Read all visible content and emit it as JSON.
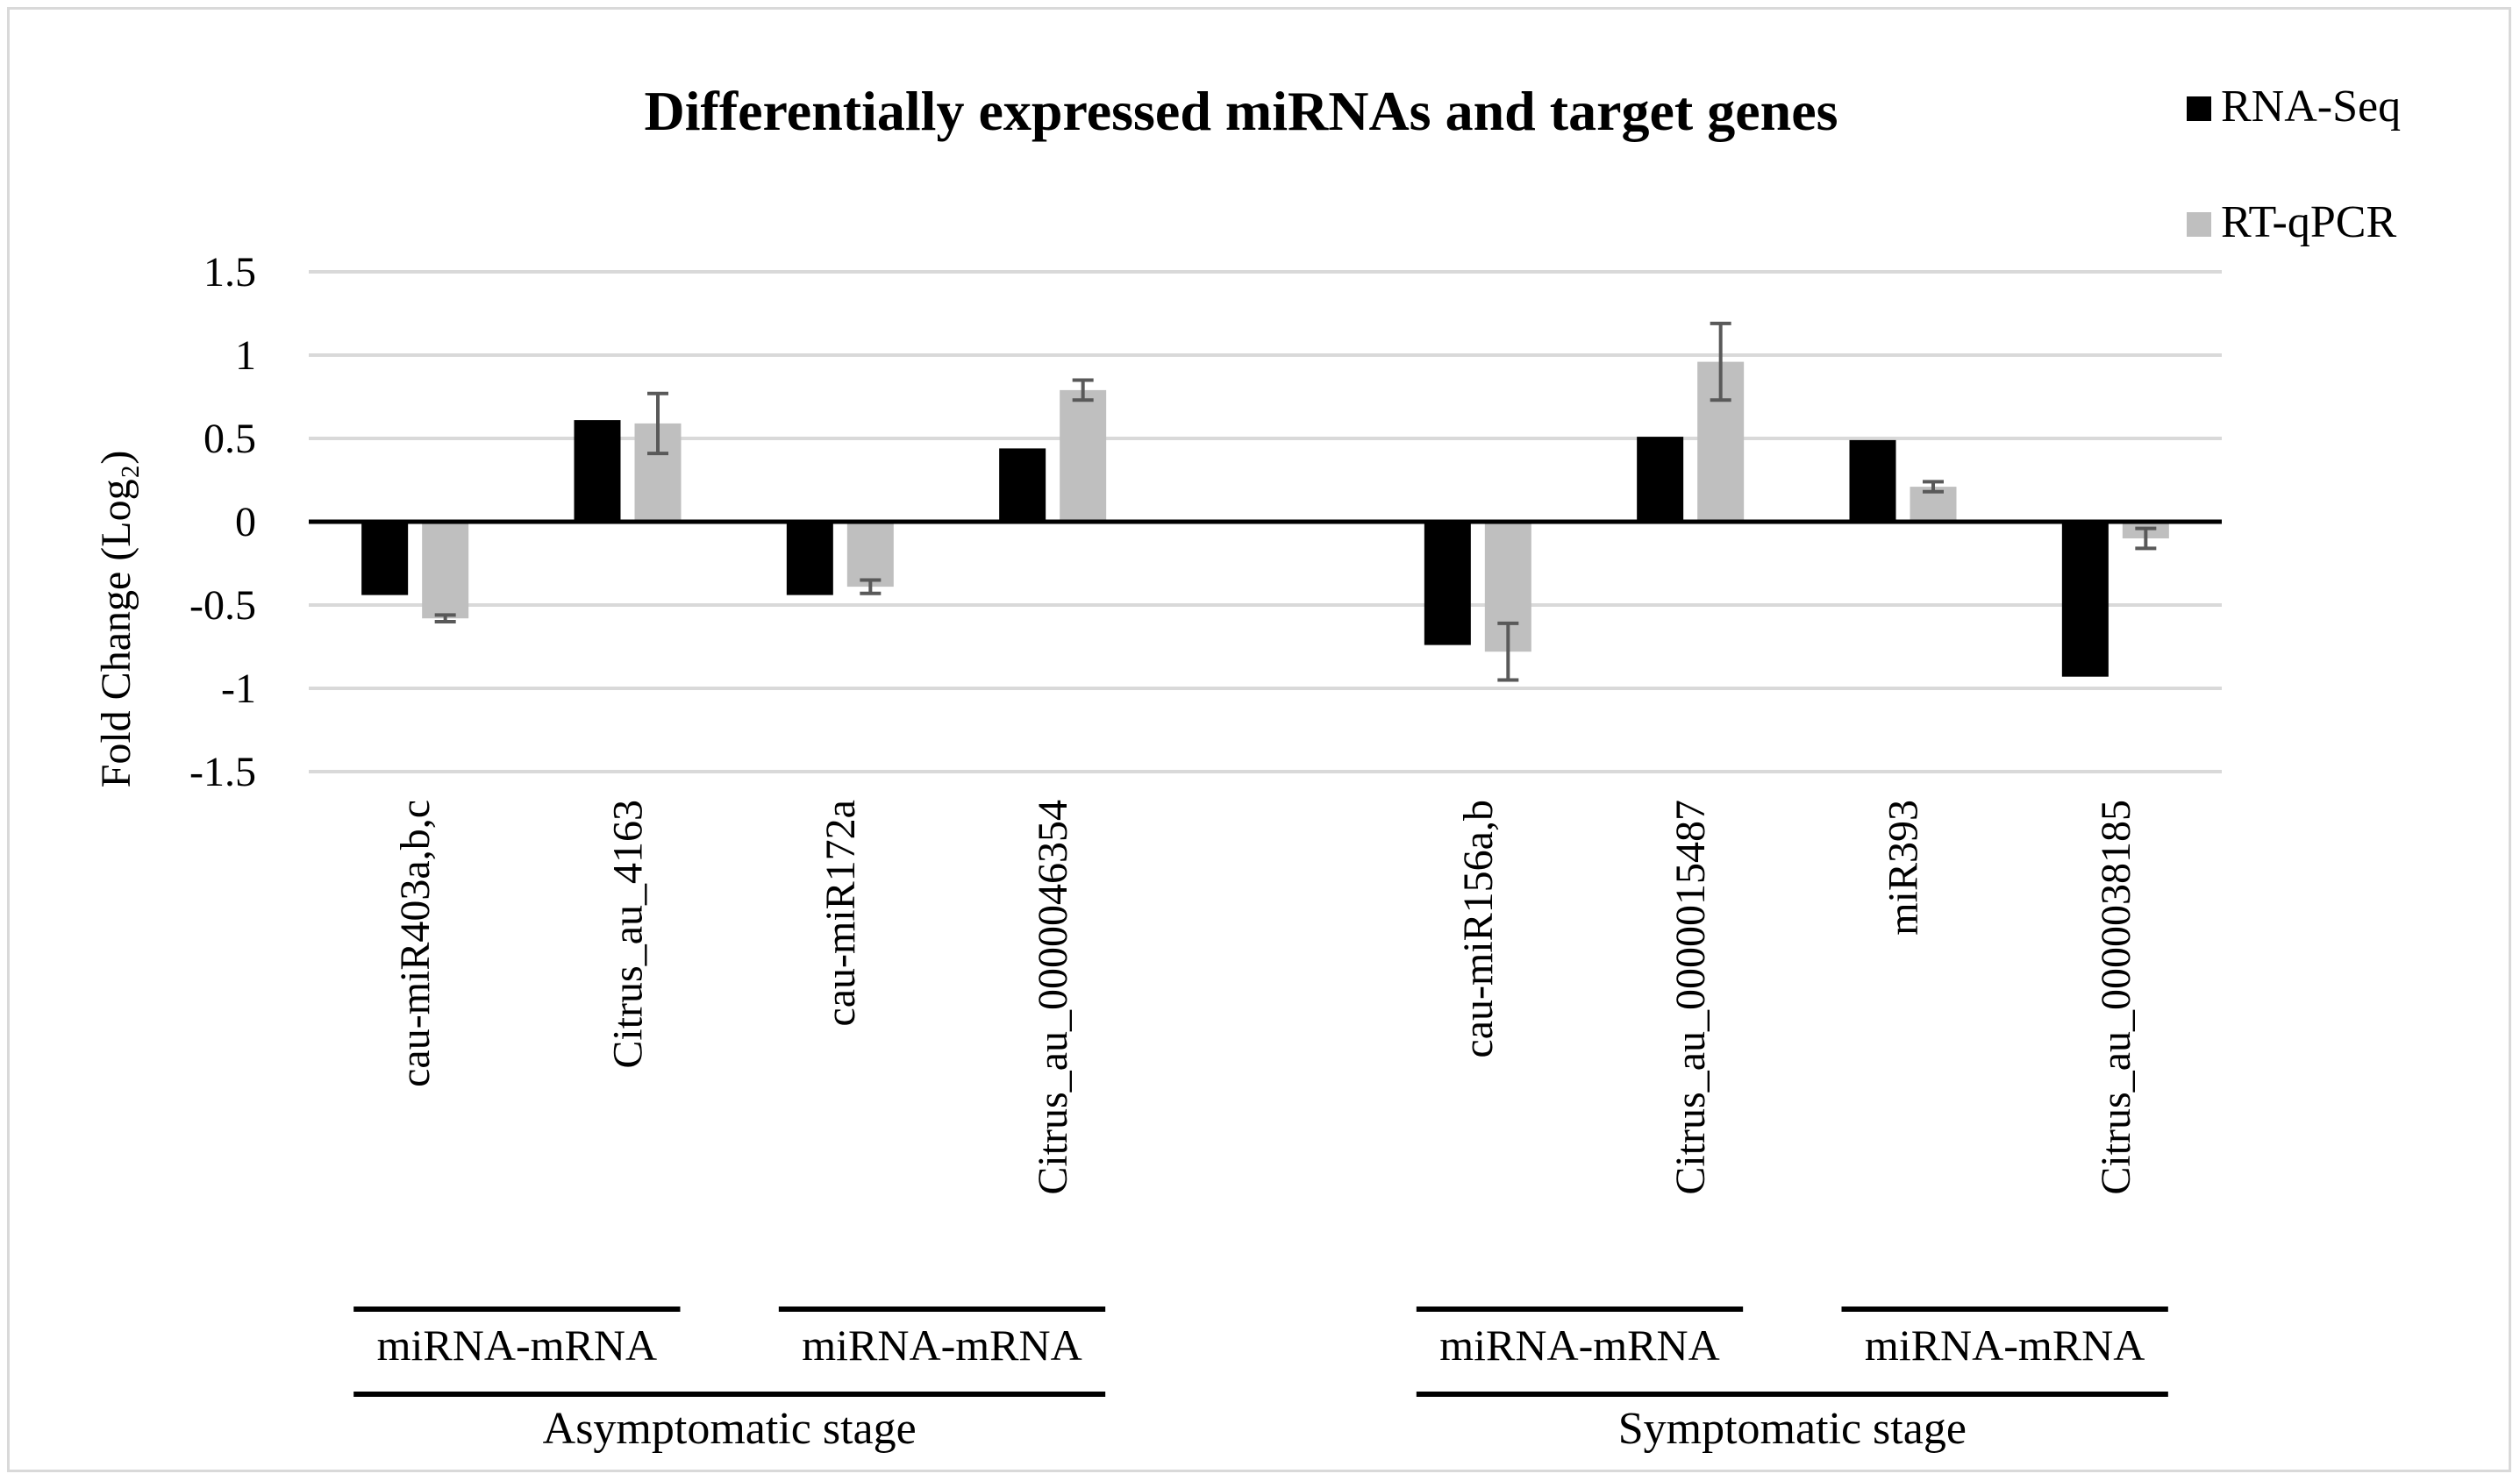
{
  "chart_data": {
    "type": "bar",
    "title": "Differentially expressed miRNAs and target genes",
    "ylabel": "Fold Change (Log₂)",
    "xlabel": "",
    "ylim": [
      -1.5,
      1.5
    ],
    "yticks": [
      -1.5,
      -1,
      -0.5,
      0,
      0.5,
      1,
      1.5
    ],
    "ytick_labels": [
      "-1.5",
      "-1",
      "-0.5",
      "0",
      "0.5",
      "1",
      "1.5"
    ],
    "grid": true,
    "legend_position": "top-right",
    "categories": [
      "cau-miR403a,b,c",
      "Citrus_au_4163",
      "cau-miR172a",
      "Citrus_au_0000046354",
      "",
      "cau-miR156a,b",
      "Citrus_au_0000015487",
      "miR393",
      "Citrus_au_0000038185"
    ],
    "series": [
      {
        "name": "RNA-Seq",
        "color": "#000000",
        "values": [
          -0.44,
          0.61,
          -0.44,
          0.44,
          null,
          -0.74,
          0.51,
          0.49,
          -0.93
        ]
      },
      {
        "name": "RT-qPCR",
        "color": "#bfbfbf",
        "values": [
          -0.58,
          0.59,
          -0.39,
          0.79,
          null,
          -0.78,
          0.96,
          0.21,
          -0.1
        ],
        "errors": [
          0.02,
          0.18,
          0.04,
          0.06,
          null,
          0.17,
          0.23,
          0.03,
          0.06
        ]
      }
    ],
    "pairs": [
      {
        "label": "miRNA-mRNA",
        "from": 0,
        "to": 1
      },
      {
        "label": "miRNA-mRNA",
        "from": 2,
        "to": 3
      },
      {
        "label": "miRNA-mRNA",
        "from": 5,
        "to": 6
      },
      {
        "label": "miRNA-mRNA",
        "from": 7,
        "to": 8
      }
    ],
    "stages": [
      {
        "label": "Asymptomatic stage",
        "from": 0,
        "to": 3
      },
      {
        "label": "Symptomatic stage",
        "from": 5,
        "to": 8
      }
    ]
  }
}
